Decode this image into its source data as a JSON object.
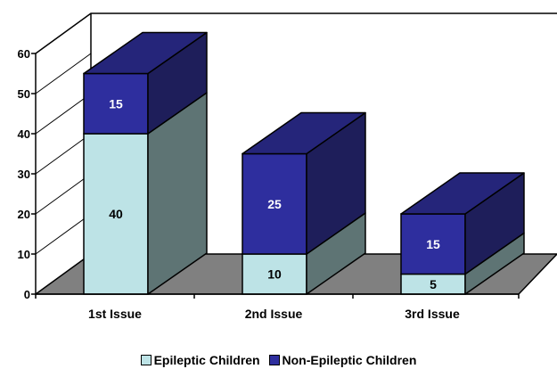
{
  "chart_data": {
    "type": "bar",
    "stacked": true,
    "three_d": true,
    "title": "",
    "xlabel": "",
    "ylabel": "",
    "categories": [
      "1st Issue",
      "2nd Issue",
      "3rd Issue"
    ],
    "series": [
      {
        "name": "Epileptic Children",
        "values": [
          40,
          10,
          5
        ],
        "color": "#bde3e6"
      },
      {
        "name": "Non-Epileptic Children",
        "values": [
          15,
          25,
          15
        ],
        "color": "#2e2e9e"
      }
    ],
    "ylim": [
      0,
      60
    ],
    "yticks": [
      "0",
      "10",
      "20",
      "30",
      "40",
      "50",
      "60"
    ],
    "grid": false,
    "legend_position": "bottom",
    "colors": {
      "series1_side": "#5e7474",
      "series2_side": "#1e1e5a",
      "series2_top": "#25257a",
      "floor": "#808080"
    }
  }
}
